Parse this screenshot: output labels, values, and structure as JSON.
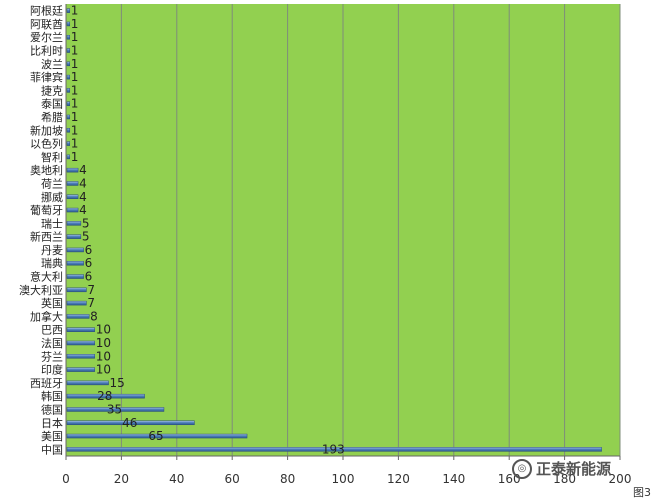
{
  "chart_data": {
    "type": "bar",
    "orientation": "horizontal",
    "categories": [
      "中国",
      "美国",
      "日本",
      "德国",
      "韩国",
      "西班牙",
      "印度",
      "芬兰",
      "法国",
      "巴西",
      "加拿大",
      "英国",
      "澳大利亚",
      "意大利",
      "瑞典",
      "丹麦",
      "新西兰",
      "瑞士",
      "葡萄牙",
      "挪威",
      "荷兰",
      "奥地利",
      "智利",
      "以色列",
      "新加坡",
      "希腊",
      "泰国",
      "捷克",
      "菲律宾",
      "波兰",
      "比利时",
      "爱尔兰",
      "阿联酋",
      "阿根廷"
    ],
    "values": [
      193,
      65,
      46,
      35,
      28,
      15,
      10,
      10,
      10,
      10,
      8,
      7,
      7,
      6,
      6,
      6,
      5,
      5,
      4,
      4,
      4,
      4,
      1,
      1,
      1,
      1,
      1,
      1,
      1,
      1,
      1,
      1,
      1,
      1
    ],
    "xlim": [
      0,
      200
    ],
    "xticks": [
      0,
      20,
      40,
      60,
      80,
      100,
      120,
      140,
      160,
      180,
      200
    ],
    "grid": true,
    "plot_background": "#92d050",
    "bar_color": "#4f81bd",
    "legend": "none"
  },
  "watermark": {
    "text": "正泰新能源",
    "icon": "wechat-logo-icon"
  },
  "figure_tag": "图3"
}
